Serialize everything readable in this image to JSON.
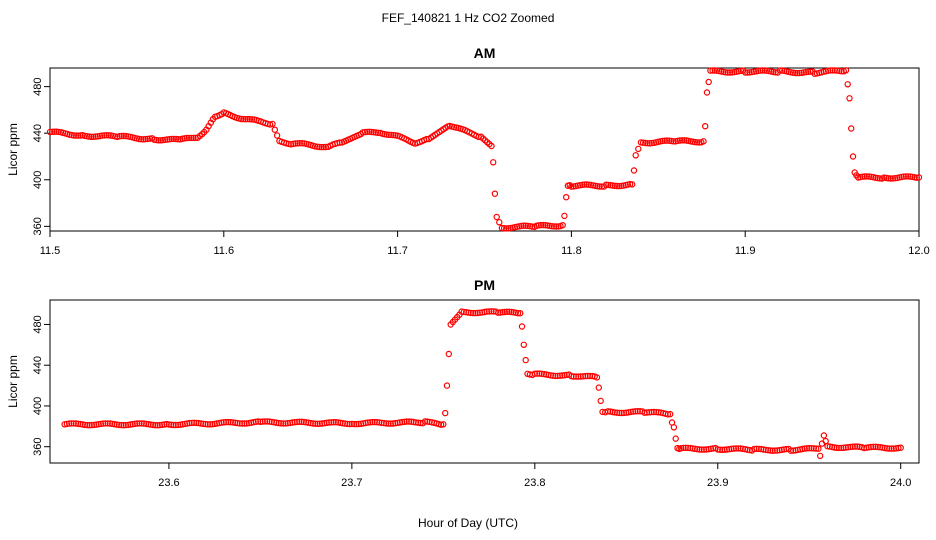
{
  "figure": {
    "title": "FEF_140821  1 Hz CO2 Zoomed",
    "xlabel": "Hour of Day (UTC)"
  },
  "colors": {
    "points": "#ff0000",
    "axis": "#000000",
    "background": "#ffffff"
  },
  "chart_data": [
    {
      "type": "scatter",
      "title": "AM",
      "ylabel": "Licor ppm",
      "xlim": [
        11.5,
        12.0
      ],
      "ylim": [
        356,
        496
      ],
      "xticks": [
        "11.5",
        "11.6",
        "11.7",
        "11.8",
        "11.9",
        "12.0"
      ],
      "yticks": [
        "360",
        "400",
        "440",
        "480"
      ],
      "grid": false,
      "series": [
        {
          "marker": "open-circle",
          "x": [
            11.5,
            11.52,
            11.54,
            11.56,
            11.575,
            11.585,
            11.59,
            11.595,
            11.6,
            11.61,
            11.62,
            11.628,
            11.632,
            11.64,
            11.65,
            11.66,
            11.668,
            11.68,
            11.69,
            11.7,
            11.71,
            11.718,
            11.73,
            11.74,
            11.748,
            11.754,
            11.755,
            11.756,
            11.757,
            11.76,
            11.78,
            11.795,
            11.796,
            11.797,
            11.798,
            11.8,
            11.82,
            11.835,
            11.836,
            11.837,
            11.84,
            11.86,
            11.876,
            11.877,
            11.878,
            11.88,
            11.9,
            11.92,
            11.94,
            11.958,
            11.96,
            11.961,
            11.962,
            11.963,
            11.965,
            11.98,
            12.0
          ],
          "y": [
            441,
            438,
            437,
            435,
            434,
            437,
            443,
            455,
            457,
            453,
            450,
            448,
            433,
            431,
            430,
            428,
            432,
            440,
            441,
            437,
            432,
            435,
            447,
            441,
            437,
            429,
            415,
            388,
            368,
            359,
            360,
            361,
            369,
            385,
            394,
            395,
            395,
            396,
            408,
            421,
            432,
            433,
            433,
            446,
            475,
            493,
            493,
            493,
            492,
            494,
            470,
            444,
            420,
            406,
            402,
            402,
            402
          ]
        }
      ]
    },
    {
      "type": "scatter",
      "title": "PM",
      "ylabel": "Licor ppm",
      "xlim": [
        23.535,
        24.01
      ],
      "ylim": [
        344,
        504
      ],
      "xticks": [
        "23.6",
        "23.7",
        "23.8",
        "23.9",
        "24.0"
      ],
      "yticks": [
        "360",
        "400",
        "440",
        "480"
      ],
      "grid": false,
      "series": [
        {
          "marker": "open-circle",
          "x": [
            23.543,
            23.6,
            23.65,
            23.7,
            23.74,
            23.75,
            23.751,
            23.752,
            23.753,
            23.754,
            23.76,
            23.78,
            23.792,
            23.793,
            23.794,
            23.795,
            23.796,
            23.8,
            23.82,
            23.834,
            23.835,
            23.836,
            23.837,
            23.84,
            23.86,
            23.874,
            23.875,
            23.876,
            23.877,
            23.878,
            23.88,
            23.9,
            23.92,
            23.94,
            23.955,
            23.956,
            23.957,
            23.958,
            23.96,
            23.98,
            24.0
          ],
          "y": [
            382,
            382,
            384,
            383,
            384,
            382,
            393,
            420,
            451,
            480,
            492,
            492,
            491,
            478,
            460,
            445,
            432,
            431,
            430,
            428,
            418,
            405,
            395,
            394,
            394,
            392,
            384,
            379,
            368,
            359,
            358,
            358,
            357,
            357,
            358,
            351,
            363,
            371,
            360,
            359,
            359
          ]
        }
      ]
    }
  ]
}
